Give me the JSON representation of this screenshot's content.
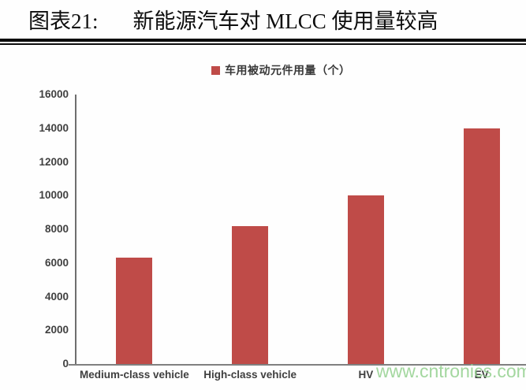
{
  "header": {
    "label": "图表21:",
    "title": "新能源汽车对 MLCC 使用量较高"
  },
  "legend": {
    "label": "车用被动元件用量（个）",
    "marker_color": "#bf4b48"
  },
  "watermark": "www.cntronics.com",
  "chart_data": {
    "type": "bar",
    "title": "新能源汽车对 MLCC 使用量较高",
    "series_name": "车用被动元件用量（个）",
    "categories": [
      "Medium-class vehicle",
      "High-class vehicle",
      "HV",
      "EV"
    ],
    "values": [
      6300,
      8200,
      10000,
      14000
    ],
    "xlabel": "",
    "ylabel": "",
    "ylim": [
      0,
      16000
    ],
    "ytick_step": 2000,
    "yticks": [
      0,
      2000,
      4000,
      6000,
      8000,
      10000,
      12000,
      14000,
      16000
    ],
    "grid": false,
    "legend_position": "top",
    "bar_color": "#bf4b48",
    "axis_color": "#808080",
    "tick_label_color": "#404040"
  }
}
